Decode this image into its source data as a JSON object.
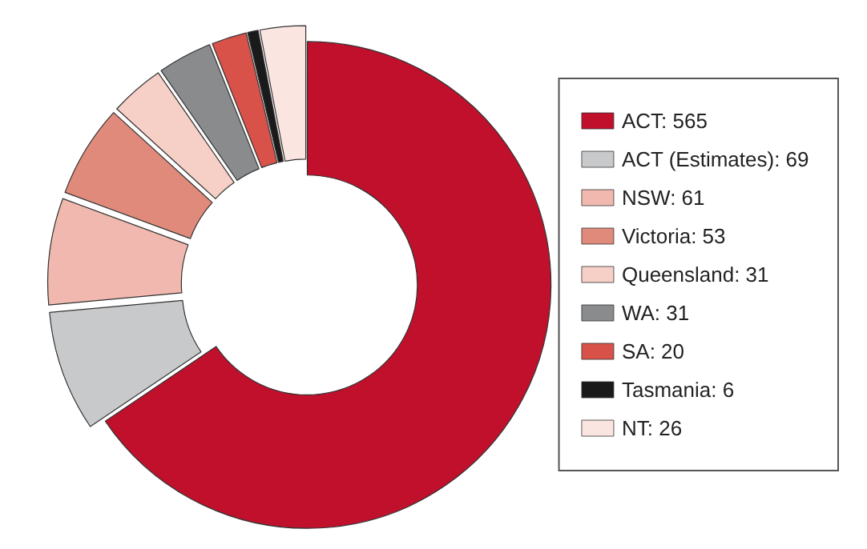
{
  "chart_data": {
    "type": "donut",
    "categories": [
      "ACT: 565",
      "ACT (Estimates): 69",
      "NSW: 61",
      "Victoria: 53",
      "Queensland: 31",
      "WA: 31",
      "SA: 20",
      "Tasmania: 6",
      "NT: 26"
    ],
    "values": [
      565,
      69,
      61,
      53,
      31,
      31,
      20,
      6,
      26
    ],
    "colors": [
      "#c0102c",
      "#c8c9cb",
      "#f0b8ae",
      "#e08a7c",
      "#f6cfc6",
      "#8a8b8d",
      "#d8524a",
      "#1a1a1a",
      "#fbe5e0"
    ],
    "legend": "right"
  }
}
